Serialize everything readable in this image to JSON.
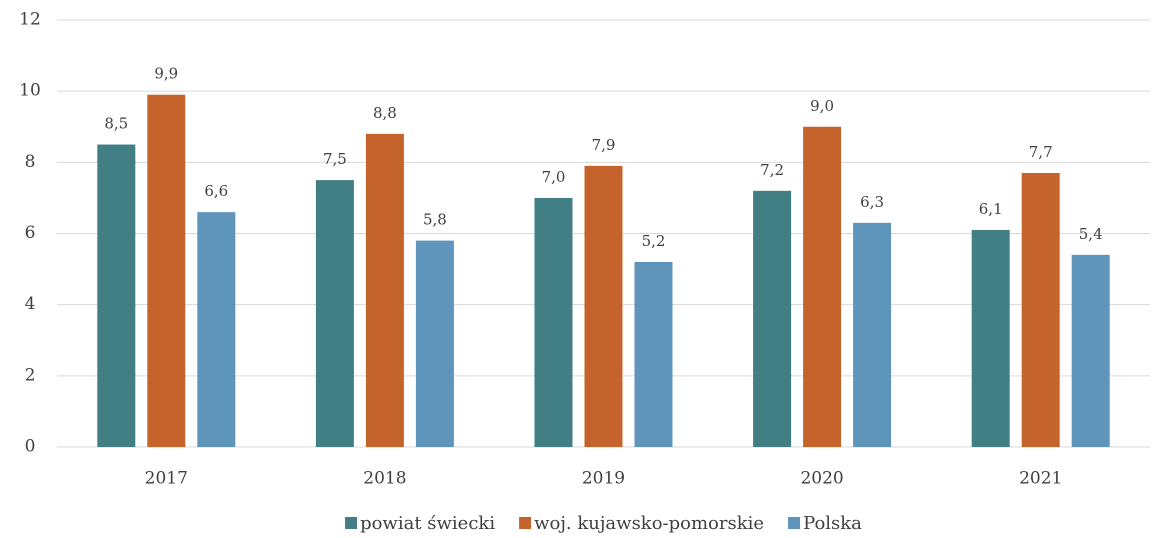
{
  "chart_data": {
    "type": "bar",
    "categories": [
      "2017",
      "2018",
      "2019",
      "2020",
      "2021"
    ],
    "series": [
      {
        "name": "powiat świecki",
        "color": "#417f84",
        "values": [
          8.5,
          7.5,
          7.0,
          7.2,
          6.1
        ],
        "value_labels": [
          "8,5",
          "7,5",
          "7,0",
          "7,2",
          "6,1"
        ]
      },
      {
        "name": "woj. kujawsko-pomorskie",
        "color": "#c5632c",
        "values": [
          9.9,
          8.8,
          7.9,
          9.0,
          7.7
        ],
        "value_labels": [
          "9,9",
          "8,8",
          "7,9",
          "9,0",
          "7,7"
        ]
      },
      {
        "name": "Polska",
        "color": "#5f94bb",
        "values": [
          6.6,
          5.8,
          5.2,
          6.3,
          5.4
        ],
        "value_labels": [
          "6,6",
          "5,8",
          "5,2",
          "6,3",
          "5,4"
        ]
      }
    ],
    "ylim": [
      0,
      12
    ],
    "yticks": [
      0,
      2,
      4,
      6,
      8,
      10,
      12
    ],
    "grid": true,
    "legend": "bottom"
  }
}
